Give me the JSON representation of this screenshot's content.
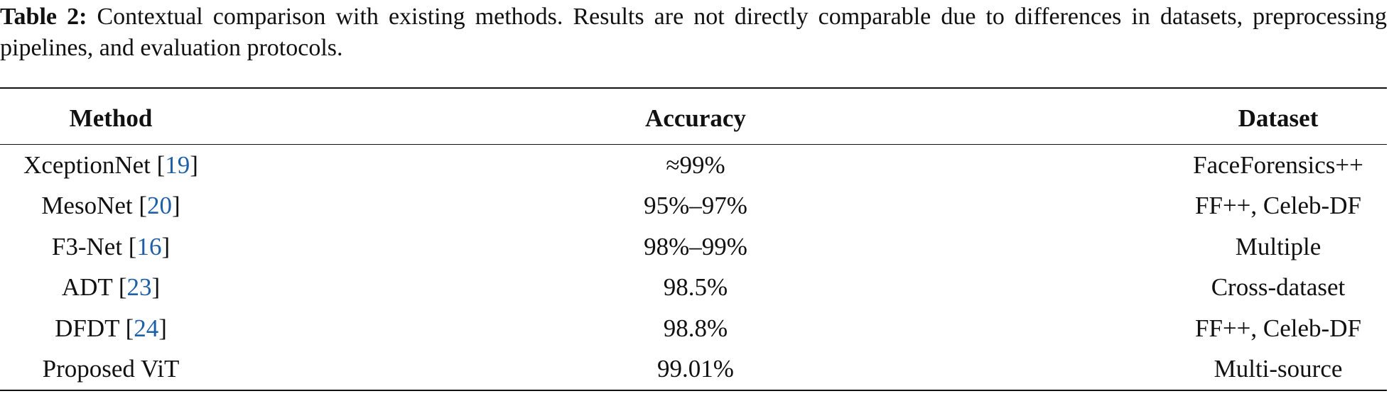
{
  "caption": {
    "label": "Table 2:",
    "text": "Contextual comparison with existing methods. Results are not directly comparable due to differences in datasets, preprocessing pipelines, and evaluation protocols."
  },
  "table": {
    "header": [
      "Method",
      "Accuracy",
      "Dataset"
    ],
    "rows": [
      {
        "method": "XceptionNet",
        "citation": "[19]",
        "accuracy": "≈99%",
        "dataset": "FaceForensics++"
      },
      {
        "method": "MesoNet",
        "citation": "[20]",
        "accuracy": "95%–97%",
        "dataset": "FF++, Celeb-DF"
      },
      {
        "method": "F3-Net",
        "citation": "[16]",
        "accuracy": "98%–99%",
        "dataset": "Multiple"
      },
      {
        "method": "ADT",
        "citation": "[23]",
        "accuracy": "98.5%",
        "dataset": "Cross-dataset"
      },
      {
        "method": "DFDT",
        "citation": "[24]",
        "accuracy": "98.8%",
        "dataset": "FF++, Celeb-DF"
      },
      {
        "method": "Proposed ViT",
        "citation": "",
        "accuracy": "99.01%",
        "dataset": "Multi-source"
      }
    ]
  }
}
